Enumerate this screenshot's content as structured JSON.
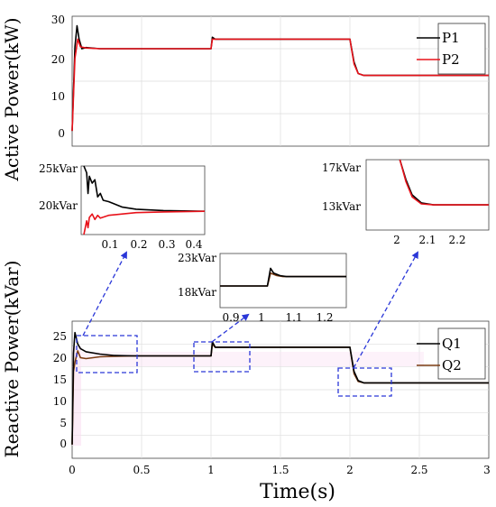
{
  "chart_data": [
    {
      "type": "line",
      "ylabel": "Active Power(kW)",
      "xlim": [
        0,
        3
      ],
      "ylim": [
        -4,
        30
      ],
      "yticks": [
        0,
        10,
        20,
        30
      ],
      "grid": true,
      "legend": "top-right",
      "series": [
        {
          "name": "P1",
          "color": "#000000",
          "x": [
            0,
            0.02,
            0.035,
            0.05,
            0.07,
            0.1,
            0.2,
            0.5,
            1.0,
            1.01,
            1.03,
            1.5,
            2.0,
            2.03,
            2.06,
            2.1,
            2.5,
            3.0
          ],
          "y": [
            0,
            22,
            27.5,
            24,
            21.5,
            21.8,
            21.5,
            21.5,
            21.5,
            24.5,
            24,
            24,
            24,
            18,
            15,
            14.5,
            14.5,
            14.5
          ]
        },
        {
          "name": "P2",
          "color": "#e8121a",
          "x": [
            0,
            0.02,
            0.04,
            0.06,
            0.1,
            0.2,
            0.5,
            1.0,
            1.01,
            1.03,
            1.5,
            2.0,
            2.03,
            2.06,
            2.1,
            2.5,
            3.0
          ],
          "y": [
            0,
            19,
            24,
            22,
            21.7,
            21.5,
            21.5,
            21.5,
            24,
            24,
            24,
            24,
            17.5,
            15,
            14.5,
            14.5,
            14.5
          ]
        }
      ]
    },
    {
      "type": "line",
      "ylabel": "Reactive Power(kVar)",
      "xlabel": "Time(s)",
      "xlim": [
        0,
        3
      ],
      "ylim": [
        -3,
        27
      ],
      "xticks": [
        "0",
        "0.5",
        "1",
        "1.5",
        "2",
        "2.5",
        "3"
      ],
      "yticks": [
        0,
        5,
        10,
        15,
        20,
        25
      ],
      "grid": true,
      "legend": "top-right",
      "series": [
        {
          "name": "Q1",
          "color": "#000000",
          "x": [
            0,
            0.01,
            0.02,
            0.04,
            0.06,
            0.1,
            0.2,
            0.3,
            0.45,
            1.0,
            1.01,
            1.03,
            1.5,
            2.0,
            2.03,
            2.06,
            2.1,
            2.5,
            3.0
          ],
          "y": [
            0,
            20,
            24.5,
            22,
            21,
            20.3,
            19.8,
            19.5,
            19.4,
            19.4,
            22.5,
            21.3,
            21.3,
            21.3,
            16,
            14,
            13.5,
            13.5,
            13.5
          ]
        },
        {
          "name": "Q2",
          "color": "#7a3b12",
          "x": [
            0,
            0.01,
            0.02,
            0.04,
            0.06,
            0.1,
            0.2,
            0.3,
            0.45,
            1.0,
            1.01,
            1.03,
            1.5,
            2.0,
            2.03,
            2.06,
            2.1,
            2.5,
            3.0
          ],
          "y": [
            0,
            16,
            18,
            20.5,
            19,
            18.8,
            19.2,
            19.3,
            19.4,
            19.4,
            22,
            21.3,
            21.3,
            21.3,
            15.5,
            13.8,
            13.5,
            13.5,
            13.5
          ]
        }
      ]
    }
  ],
  "zoom_panels": [
    {
      "id": "zoom1",
      "ytick_labels": [
        "25kVar",
        "20kVar"
      ],
      "xtick_labels": [
        "0.1",
        "0.2",
        "0.3",
        "0.4"
      ]
    },
    {
      "id": "zoom2",
      "ytick_labels": [
        "23kVar",
        "18kVar"
      ],
      "xtick_labels": [
        "0.9",
        "1",
        "1.1",
        "1.2"
      ]
    },
    {
      "id": "zoom3",
      "ytick_labels": [
        "17kVar",
        "13kVar"
      ],
      "xtick_labels": [
        "2",
        "2.1",
        "2.2"
      ]
    }
  ]
}
